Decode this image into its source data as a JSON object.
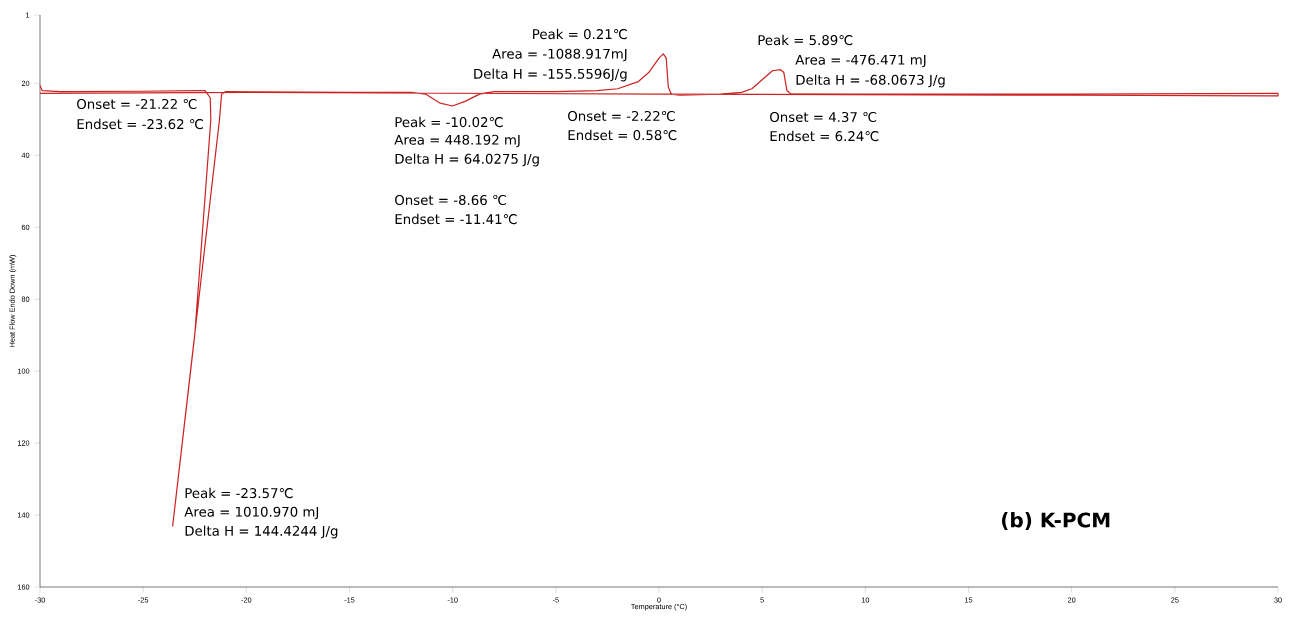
{
  "chart_data": {
    "type": "line",
    "title": "(b) K-PCM",
    "xlabel": "Temperature (°C)",
    "ylabel": "Heat Flow Endo Down (mW)",
    "x": [
      -30,
      -29.9,
      -29,
      -25,
      -22.3,
      -22.0,
      -21.75,
      -21.72,
      -22.5,
      -23.57,
      -21.3,
      -21.2,
      -21.0,
      -15,
      -12,
      -11.3,
      -10.6,
      -10.02,
      -9.4,
      -8.7,
      -8,
      -5,
      -3,
      -2,
      -1,
      -0.5,
      0,
      0.21,
      0.35,
      0.45,
      0.6,
      1,
      3,
      4,
      4.5,
      5,
      5.5,
      5.89,
      6.05,
      6.2,
      6.4,
      10,
      20,
      30,
      30,
      20,
      0,
      -20,
      -30
    ],
    "series": [
      {
        "color": "#cc2222",
        "values": [
          20.5,
          22,
          22.3,
          22.2,
          22,
          22,
          24,
          30,
          90,
          143,
          30,
          23,
          22.3,
          22.5,
          22.5,
          23,
          25.5,
          26.3,
          25,
          23,
          22.3,
          22.3,
          22,
          21.5,
          19.5,
          17,
          13,
          11.8,
          13,
          21,
          23,
          23.3,
          23,
          22.5,
          21.5,
          19,
          16.5,
          16.2,
          17,
          22,
          23,
          23,
          23,
          22.8,
          23.5,
          23.3,
          23,
          22.5,
          22.8
        ]
      }
    ],
    "xlim": [
      -30,
      30
    ],
    "ylim": [
      160,
      1
    ],
    "xticks": [
      -30,
      -25,
      -20,
      -15,
      -10,
      -5,
      0,
      5,
      10,
      15,
      20,
      25,
      30
    ],
    "yticks": [
      1,
      20,
      40,
      60,
      80,
      100,
      120,
      140,
      160
    ],
    "annotations": [
      "Onset = -21.22 ℃",
      "Endset = -23.62 ℃",
      "Peak = -10.02℃",
      "Area = 448.192 mJ",
      "Delta H = 64.0275 J/g",
      "Onset = -8.66 ℃",
      "Endset = -11.41℃",
      "Peak = 0.21℃",
      "Area = -1088.917mJ",
      "Delta H = -155.5596J/g",
      "Onset = -2.22℃",
      "Endset = 0.58℃",
      "Peak = 5.89℃",
      "Area = -476.471 mJ",
      "Delta H = -68.0673 J/g",
      "Onset = 4.37 ℃",
      "Endset = 6.24℃",
      "Peak = -23.57℃",
      "Area = 1010.970 mJ",
      "Delta H = 144.4244 J/g"
    ]
  }
}
